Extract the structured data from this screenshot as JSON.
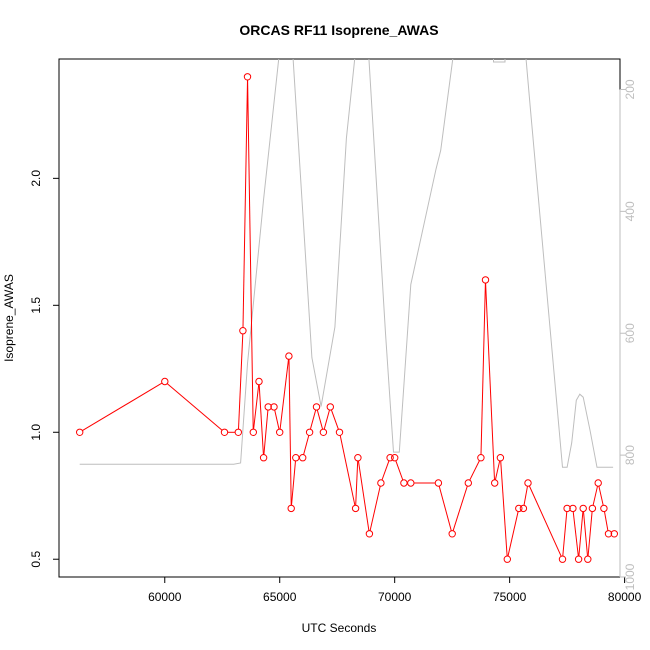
{
  "chart_data": {
    "type": "line",
    "title": "ORCAS RF11 Isoprene_AWAS",
    "xlabel": "UTC Seconds",
    "ylabel": "Isoprene_AWAS",
    "xlim": [
      55400,
      79800
    ],
    "ylim": [
      0.43,
      2.47
    ],
    "x_ticks": [
      60000,
      65000,
      70000,
      75000,
      80000
    ],
    "y_ticks": [
      0.5,
      1.0,
      1.5,
      2.0
    ],
    "x_tick_labels": [
      "60000",
      "65000",
      "70000",
      75000,
      "80000"
    ],
    "y_tick_labels": [
      "0.5",
      "1.0",
      "1.5",
      "2.0"
    ],
    "right_axis": {
      "ylim": [
        1000,
        150
      ],
      "ticks": [
        200,
        400,
        600,
        800,
        1000
      ],
      "tick_labels": [
        "200",
        "400",
        "600",
        "800",
        "1000"
      ],
      "color": "#bebebe"
    },
    "series": [
      {
        "color": "#ff0000",
        "marker": "open-circle",
        "points": [
          [
            56300,
            1.0
          ],
          [
            60000,
            1.2
          ],
          [
            62600,
            1.0
          ],
          [
            63200,
            1.0
          ],
          [
            63400,
            1.4
          ],
          [
            63600,
            2.4
          ],
          [
            63850,
            1.0
          ],
          [
            64100,
            1.2
          ],
          [
            64300,
            0.9
          ],
          [
            64500,
            1.1
          ],
          [
            64750,
            1.1
          ],
          [
            65000,
            1.0
          ],
          [
            65400,
            1.3
          ],
          [
            65500,
            0.7
          ],
          [
            65700,
            0.9
          ],
          [
            66000,
            0.9
          ],
          [
            66300,
            1.0
          ],
          [
            66600,
            1.1
          ],
          [
            66900,
            1.0
          ],
          [
            67200,
            1.1
          ],
          [
            67600,
            1.0
          ],
          [
            68300,
            0.7
          ],
          [
            68400,
            0.9
          ],
          [
            68900,
            0.6
          ],
          [
            69400,
            0.8
          ],
          [
            69800,
            0.9
          ],
          [
            70000,
            0.9
          ],
          [
            70400,
            0.8
          ],
          [
            70700,
            0.8
          ],
          [
            71900,
            0.8
          ],
          [
            72500,
            0.6
          ],
          [
            73200,
            0.8
          ],
          [
            73750,
            0.9
          ],
          [
            73950,
            1.6
          ],
          [
            74350,
            0.8
          ],
          [
            74600,
            0.9
          ],
          [
            74900,
            0.5
          ],
          [
            75400,
            0.7
          ],
          [
            75600,
            0.7
          ],
          [
            75800,
            0.8
          ],
          [
            77300,
            0.5
          ],
          [
            77500,
            0.7
          ],
          [
            77750,
            0.7
          ],
          [
            78000,
            0.5
          ],
          [
            78200,
            0.7
          ],
          [
            78400,
            0.5
          ],
          [
            78600,
            0.7
          ],
          [
            78850,
            0.8
          ],
          [
            79100,
            0.7
          ],
          [
            79300,
            0.6
          ],
          [
            79550,
            0.6
          ]
        ]
      },
      {
        "color": "#bebebe",
        "axis": "right",
        "marker": "none",
        "points": [
          [
            56300,
            815
          ],
          [
            63000,
            815
          ],
          [
            63300,
            813
          ],
          [
            63600,
            650
          ],
          [
            64300,
            380
          ],
          [
            65100,
            100
          ],
          [
            65500,
            100
          ],
          [
            66400,
            640
          ],
          [
            66800,
            720
          ],
          [
            67400,
            590
          ],
          [
            67900,
            280
          ],
          [
            68400,
            100
          ],
          [
            68800,
            100
          ],
          [
            69600,
            600
          ],
          [
            69950,
            795
          ],
          [
            70200,
            795
          ],
          [
            70700,
            520
          ],
          [
            71800,
            330
          ],
          [
            72000,
            300
          ],
          [
            72700,
            100
          ],
          [
            73400,
            100
          ],
          [
            73700,
            140
          ],
          [
            74100,
            100
          ],
          [
            74300,
            100
          ],
          [
            74300,
            155
          ],
          [
            74800,
            155
          ],
          [
            74800,
            100
          ],
          [
            75600,
            100
          ],
          [
            75900,
            230
          ],
          [
            77300,
            820
          ],
          [
            77500,
            820
          ],
          [
            77700,
            780
          ],
          [
            77900,
            710
          ],
          [
            78050,
            700
          ],
          [
            78200,
            705
          ],
          [
            78500,
            760
          ],
          [
            78800,
            820
          ],
          [
            79000,
            820
          ],
          [
            79500,
            820
          ]
        ]
      }
    ]
  }
}
